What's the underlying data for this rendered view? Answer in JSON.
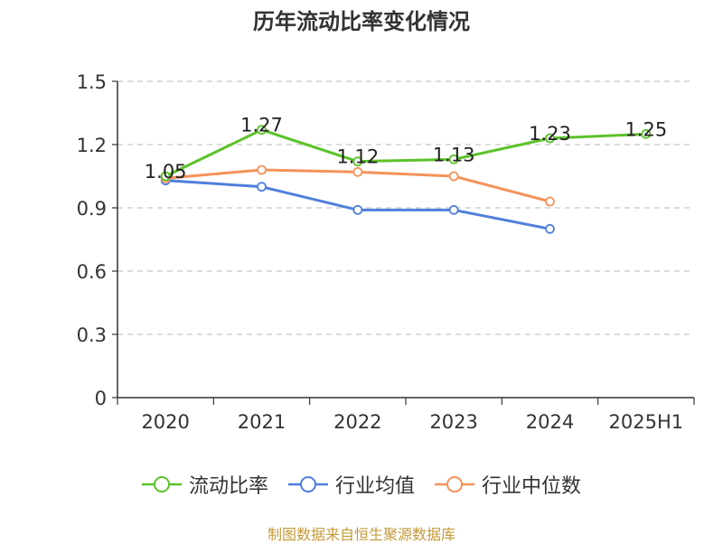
{
  "chart_data": {
    "type": "line",
    "title": "历年流动比率变化情况",
    "categories": [
      "2020",
      "2021",
      "2022",
      "2023",
      "2024",
      "2025H1"
    ],
    "ylim": [
      0,
      1.5
    ],
    "yticks": [
      "0",
      "0.3",
      "0.6",
      "0.9",
      "1.2",
      "1.5"
    ],
    "grid": true,
    "legend_position": "bottom",
    "series": [
      {
        "name": "流动比率",
        "color": "#5cc22a",
        "values": [
          1.05,
          1.27,
          1.12,
          1.13,
          1.23,
          1.25
        ],
        "labels": [
          "1.05",
          "1.27",
          "1.12",
          "1.13",
          "1.23",
          "1.25"
        ]
      },
      {
        "name": "行业均值",
        "color": "#4f7fdb",
        "values": [
          1.03,
          1.0,
          0.89,
          0.89,
          0.8,
          null
        ]
      },
      {
        "name": "行业中位数",
        "color": "#f4935a",
        "values": [
          1.04,
          1.08,
          1.07,
          1.05,
          0.93,
          null
        ]
      }
    ]
  },
  "footer": "制图数据来自恒生聚源数据库"
}
